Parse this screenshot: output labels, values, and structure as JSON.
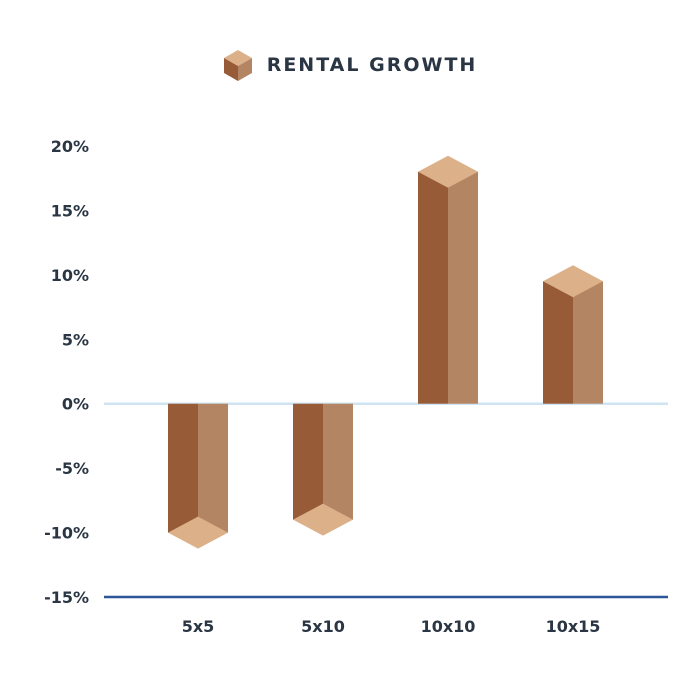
{
  "chart_data": {
    "type": "bar",
    "title": "",
    "xlabel": "",
    "ylabel": "",
    "categories": [
      "5x5",
      "5x10",
      "10x10",
      "10x15"
    ],
    "series": [
      {
        "name": "RENTAL GROWTH",
        "values": [
          -10,
          -9,
          18,
          9.5
        ]
      }
    ],
    "ylim": [
      -15,
      20
    ],
    "yticks": [
      20,
      15,
      10,
      5,
      0,
      -5,
      -10,
      -15
    ],
    "ytick_labels": [
      "20%",
      "15%",
      "10%",
      "5%",
      "0%",
      "-5%",
      "-10%",
      "-15%"
    ],
    "grid": false,
    "legend_position": "top-center",
    "colors": {
      "bar_front": "#975c37",
      "bar_side": "#b48562",
      "bar_cap": "#dcb18a",
      "zero_line": "#cfe3f2",
      "bottom_axis": "#2c5697",
      "text": "#2b3644"
    }
  }
}
